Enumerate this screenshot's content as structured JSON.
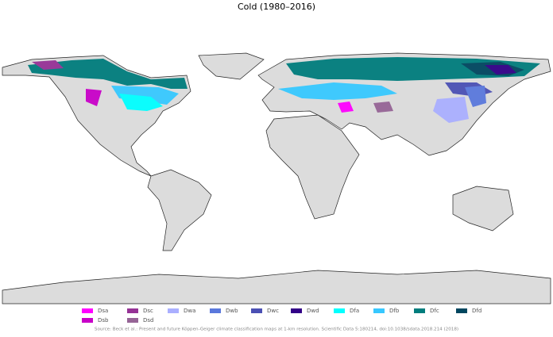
{
  "title": "Cold (1980–2016)",
  "legend": [
    {
      "label": "Dsa",
      "color": "#ff00ff"
    },
    {
      "label": "Dsb",
      "color": "#c800c8"
    },
    {
      "label": "Dsc",
      "color": "#963296"
    },
    {
      "label": "Dsd",
      "color": "#966496"
    },
    {
      "label": "Dwa",
      "color": "#aaafff"
    },
    {
      "label": "Dwb",
      "color": "#5a78dc"
    },
    {
      "label": "Dwc",
      "color": "#4b50b4"
    },
    {
      "label": "Dwd",
      "color": "#320087"
    },
    {
      "label": "Dfa",
      "color": "#00ffff"
    },
    {
      "label": "Dfb",
      "color": "#37c8ff"
    },
    {
      "label": "Dfc",
      "color": "#007d7d"
    },
    {
      "label": "Dfd",
      "color": "#00465f"
    }
  ],
  "source": "Source: Beck et al.: Present and future Köppen-Geiger climate classification maps at 1-km resolution. Scientific Data 5:180214, doi:10.1038/sdata.2018.214 (2018)"
}
